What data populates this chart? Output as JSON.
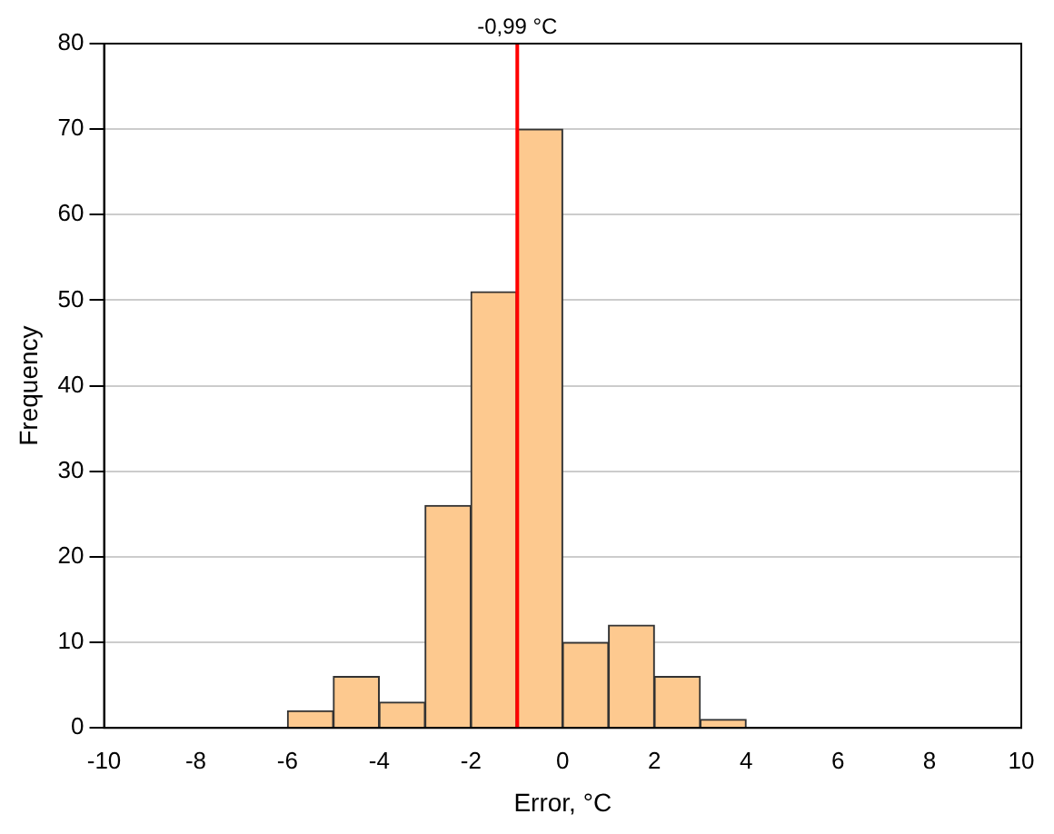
{
  "chart_data": {
    "type": "histogram",
    "xlabel": "Error, °C",
    "ylabel": "Frequency",
    "bins": [
      -6,
      -5,
      -4,
      -3,
      -2,
      -1,
      0,
      1,
      2,
      3,
      4
    ],
    "values": [
      2,
      6,
      3,
      26,
      51,
      70,
      10,
      12,
      6,
      1
    ],
    "color": "#fdc98f",
    "xlim": [
      -10,
      10
    ],
    "xticks": [
      -10,
      -8,
      -6,
      -4,
      -2,
      0,
      2,
      4,
      6,
      8,
      10
    ],
    "ylim": [
      0,
      80
    ],
    "yticks": [
      0,
      10,
      20,
      30,
      40,
      50,
      60,
      70,
      80
    ],
    "grid": "y",
    "legend": false,
    "ref_lines": [
      {
        "axis": "x",
        "value": -0.99,
        "label": "-0,99 °C",
        "color": "#ff0000"
      }
    ]
  }
}
